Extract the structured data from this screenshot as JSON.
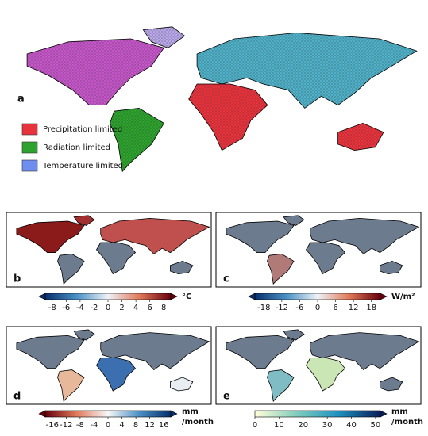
{
  "panels": [
    {
      "label": "a",
      "legend": [
        {
          "name": "Precipitation limited",
          "color": "#e8323c"
        },
        {
          "name": "Radiation limited",
          "color": "#2ea22e"
        },
        {
          "name": "Temperature limited",
          "color": "#6f8ff0"
        }
      ]
    },
    {
      "label": "b",
      "colorbar": {
        "lim": [
          -9,
          9
        ],
        "ticks": [
          -8,
          -6,
          -4,
          -2,
          0,
          2,
          4,
          6,
          8
        ],
        "unit": [
          "°C"
        ],
        "colors": [
          "#08306b",
          "#4a90c4",
          "#eef3f7",
          "#e07a5a",
          "#67000d"
        ]
      }
    },
    {
      "label": "c",
      "colorbar": {
        "lim": [
          -21,
          21
        ],
        "ticks": [
          -18,
          -12,
          -6,
          0,
          6,
          12,
          18
        ],
        "unit": [
          "W/m²"
        ],
        "colors": [
          "#08306b",
          "#4a90c4",
          "#eef3f7",
          "#e07a5a",
          "#67000d"
        ]
      }
    },
    {
      "label": "d",
      "colorbar": {
        "lim": [
          -18,
          18
        ],
        "ticks": [
          -16,
          -12,
          -8,
          -4,
          0,
          4,
          8,
          12,
          16
        ],
        "unit": [
          "mm",
          "/month"
        ],
        "colors": [
          "#67000d",
          "#e07a5a",
          "#f7f7f7",
          "#4a90c4",
          "#08306b"
        ]
      }
    },
    {
      "label": "e",
      "colorbar": {
        "lim": [
          0,
          52
        ],
        "ticks": [
          0,
          10,
          20,
          30,
          40,
          50
        ],
        "unit": [
          "mm",
          "/month"
        ],
        "colors": [
          "#ffffd9",
          "#7fcdbb",
          "#1d91c0",
          "#081d58"
        ]
      }
    }
  ]
}
